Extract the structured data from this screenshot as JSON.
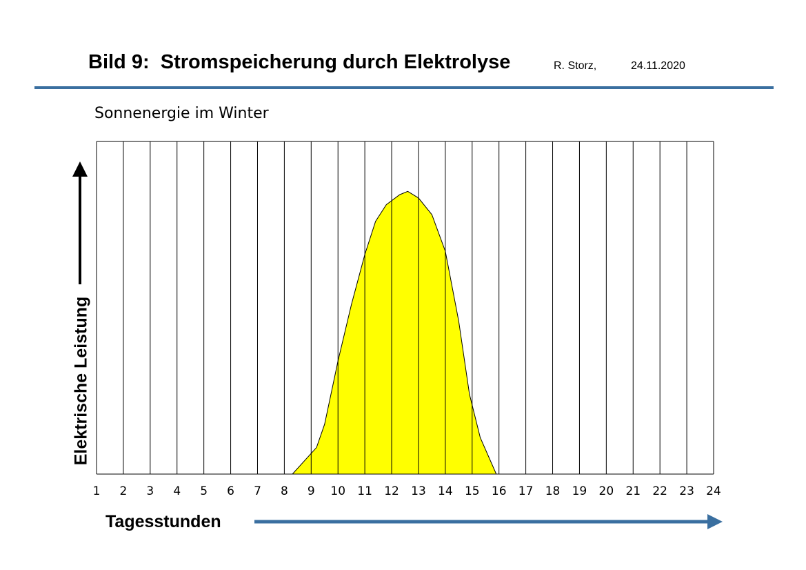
{
  "header": {
    "title": "Bild 9:  Stromspeicherung durch Elektrolyse",
    "author": "R. Storz,",
    "date": "24.11.2020"
  },
  "colors": {
    "accent": "#3a6fa0",
    "fill": "#ffff00",
    "grid": "#000000"
  },
  "chart_data": {
    "type": "area",
    "title": "Sonnenergie im Winter",
    "xlabel": "Tagesstunden",
    "ylabel": "Elektrische Leistung",
    "x_ticks": [
      "1",
      "2",
      "3",
      "4",
      "5",
      "6",
      "7",
      "8",
      "9",
      "10",
      "11",
      "12",
      "13",
      "14",
      "15",
      "16",
      "17",
      "18",
      "19",
      "20",
      "21",
      "22",
      "23",
      "24"
    ],
    "xlim": [
      1,
      24
    ],
    "ylim": [
      0,
      1
    ],
    "grid": "vertical",
    "series": [
      {
        "x": [
          8.3,
          9.2,
          9.5,
          10.0,
          10.5,
          11.0,
          11.4,
          11.8,
          12.3,
          12.6,
          13.0,
          13.5,
          14.0,
          14.5,
          14.9,
          15.3,
          15.9
        ],
        "values": [
          0,
          0.08,
          0.15,
          0.34,
          0.51,
          0.66,
          0.76,
          0.81,
          0.84,
          0.85,
          0.83,
          0.78,
          0.67,
          0.46,
          0.24,
          0.11,
          0
        ]
      }
    ]
  }
}
